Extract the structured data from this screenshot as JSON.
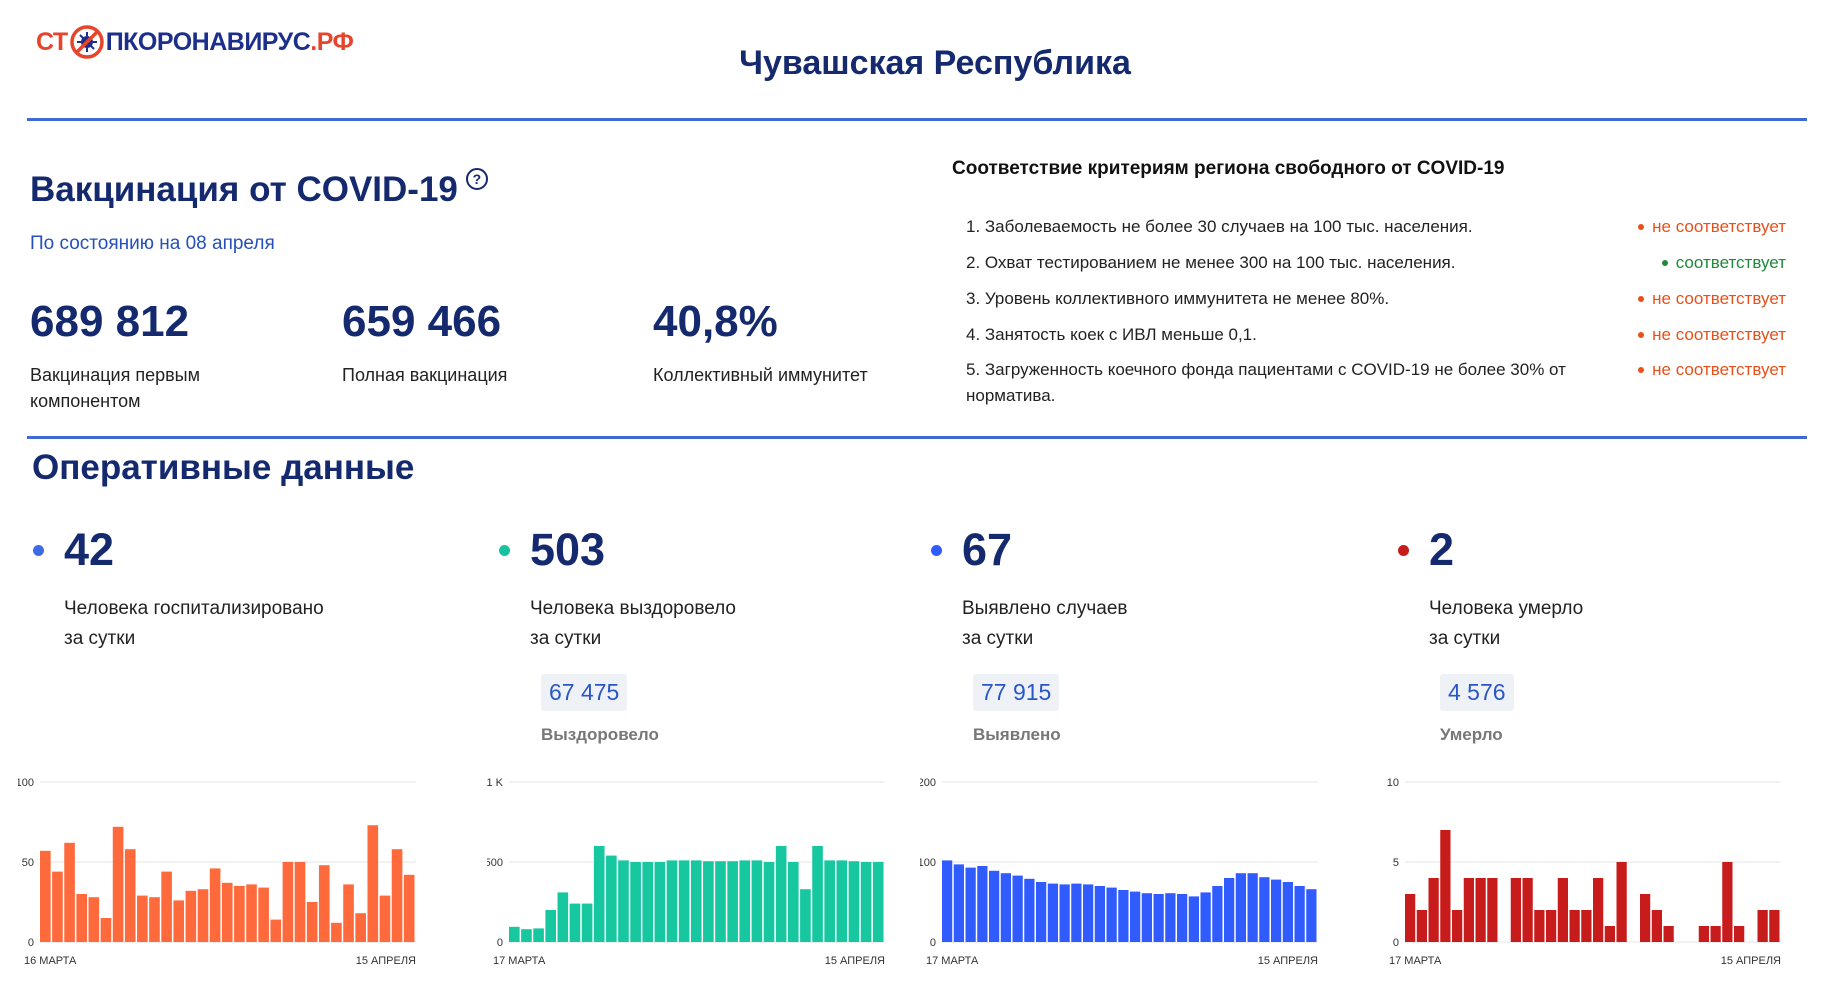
{
  "header": {
    "logo_prefix": "СТ",
    "logo_main": "ПКОРОНАВИРУС",
    "logo_suffix": ".РФ",
    "logo_icon": "virus-stop-icon",
    "region": "Чувашская Республика"
  },
  "vaccination": {
    "title": "Вакцинация от COVID-19",
    "help_icon": "?",
    "date": "По состоянию на 08 апреля",
    "stats": [
      {
        "value": "689 812",
        "label": "Вакцинация первым компонентом"
      },
      {
        "value": "659 466",
        "label": "Полная вакцинация"
      },
      {
        "value": "40,8%",
        "label": "Коллективный иммунитет"
      }
    ]
  },
  "criteria": {
    "title": "Соответствие критериям региона свободного от COVID-19",
    "items": [
      {
        "text": "1. Заболеваемость не более 30 случаев на 100 тыс. населения.",
        "status": "не соответствует",
        "color": "#e8501b"
      },
      {
        "text": "2. Охват тестированием не менее 300 на 100 тыс. населения.",
        "status": "соответствует",
        "color": "#1e8a3a"
      },
      {
        "text": "3. Уровень коллективного иммунитета не менее 80%.",
        "status": "не соответствует",
        "color": "#e8501b"
      },
      {
        "text": "4. Занятость коек с ИВЛ меньше 0,1.",
        "status": "не соответствует",
        "color": "#e8501b"
      },
      {
        "text": "5. Загруженность коечного фонда пациентами с COVID-19 не более 30% от норматива.",
        "status": "не соответствует",
        "color": "#e8501b"
      }
    ]
  },
  "operational": {
    "title": "Оперативные данные",
    "kpis": [
      {
        "value": "42",
        "desc_line1": "Человека госпитализировано",
        "desc_line2": "за сутки",
        "dot_color": "#3d6be8",
        "badge": "",
        "badge_label": ""
      },
      {
        "value": "503",
        "desc_line1": "Человека выздоровело",
        "desc_line2": "за сутки",
        "dot_color": "#16c3a0",
        "badge": "67 475",
        "badge_label": "Выздоровело"
      },
      {
        "value": "67",
        "desc_line1": "Выявлено случаев",
        "desc_line2": "за сутки",
        "dot_color": "#2f5bff",
        "badge": "77 915",
        "badge_label": "Выявлено"
      },
      {
        "value": "2",
        "desc_line1": "Человека умерло",
        "desc_line2": "за сутки",
        "dot_color": "#c81b1b",
        "badge": "4 576",
        "badge_label": "Умерло"
      }
    ]
  },
  "chart_data": [
    {
      "type": "bar",
      "color": "#ff6a3d",
      "yticks": [
        "100",
        "50",
        "0"
      ],
      "ylim": [
        0,
        100
      ],
      "x_start_label": "16 МАРТА",
      "x_end_label": "15 АПРЕЛЯ",
      "values": [
        57,
        44,
        62,
        30,
        28,
        15,
        72,
        58,
        29,
        28,
        44,
        26,
        32,
        33,
        46,
        37,
        35,
        36,
        34,
        14,
        50,
        50,
        25,
        48,
        12,
        36,
        18,
        73,
        29,
        58,
        42
      ]
    },
    {
      "type": "bar",
      "color": "#16c79f",
      "yticks": [
        "1 K",
        "500",
        "0"
      ],
      "ylim": [
        0,
        1000
      ],
      "x_start_label": "17 МАРТА",
      "x_end_label": "15 АПРЕЛЯ",
      "values": [
        95,
        80,
        85,
        200,
        310,
        240,
        240,
        600,
        540,
        510,
        500,
        500,
        500,
        510,
        510,
        510,
        505,
        505,
        505,
        510,
        510,
        500,
        600,
        500,
        330,
        600,
        510,
        510,
        505,
        500,
        500
      ]
    },
    {
      "type": "bar",
      "color": "#2f5bff",
      "yticks": [
        "200",
        "100",
        "0"
      ],
      "ylim": [
        0,
        200
      ],
      "x_start_label": "17 МАРТА",
      "x_end_label": "15 АПРЕЛЯ",
      "values": [
        102,
        97,
        93,
        95,
        89,
        86,
        83,
        79,
        75,
        73,
        72,
        73,
        72,
        70,
        68,
        65,
        63,
        61,
        60,
        61,
        60,
        57,
        62,
        70,
        80,
        86,
        86,
        81,
        78,
        75,
        70,
        66
      ]
    },
    {
      "type": "bar",
      "color": "#c81b1b",
      "yticks": [
        "10",
        "5",
        "0"
      ],
      "ylim": [
        0,
        10
      ],
      "x_start_label": "17 МАРТА",
      "x_end_label": "15 АПРЕЛЯ",
      "values": [
        3,
        2,
        4,
        7,
        2,
        4,
        4,
        4,
        0,
        4,
        4,
        2,
        2,
        4,
        2,
        2,
        4,
        1,
        5,
        0,
        3,
        2,
        1,
        0,
        0,
        1,
        1,
        5,
        1,
        0,
        2,
        2
      ]
    }
  ]
}
